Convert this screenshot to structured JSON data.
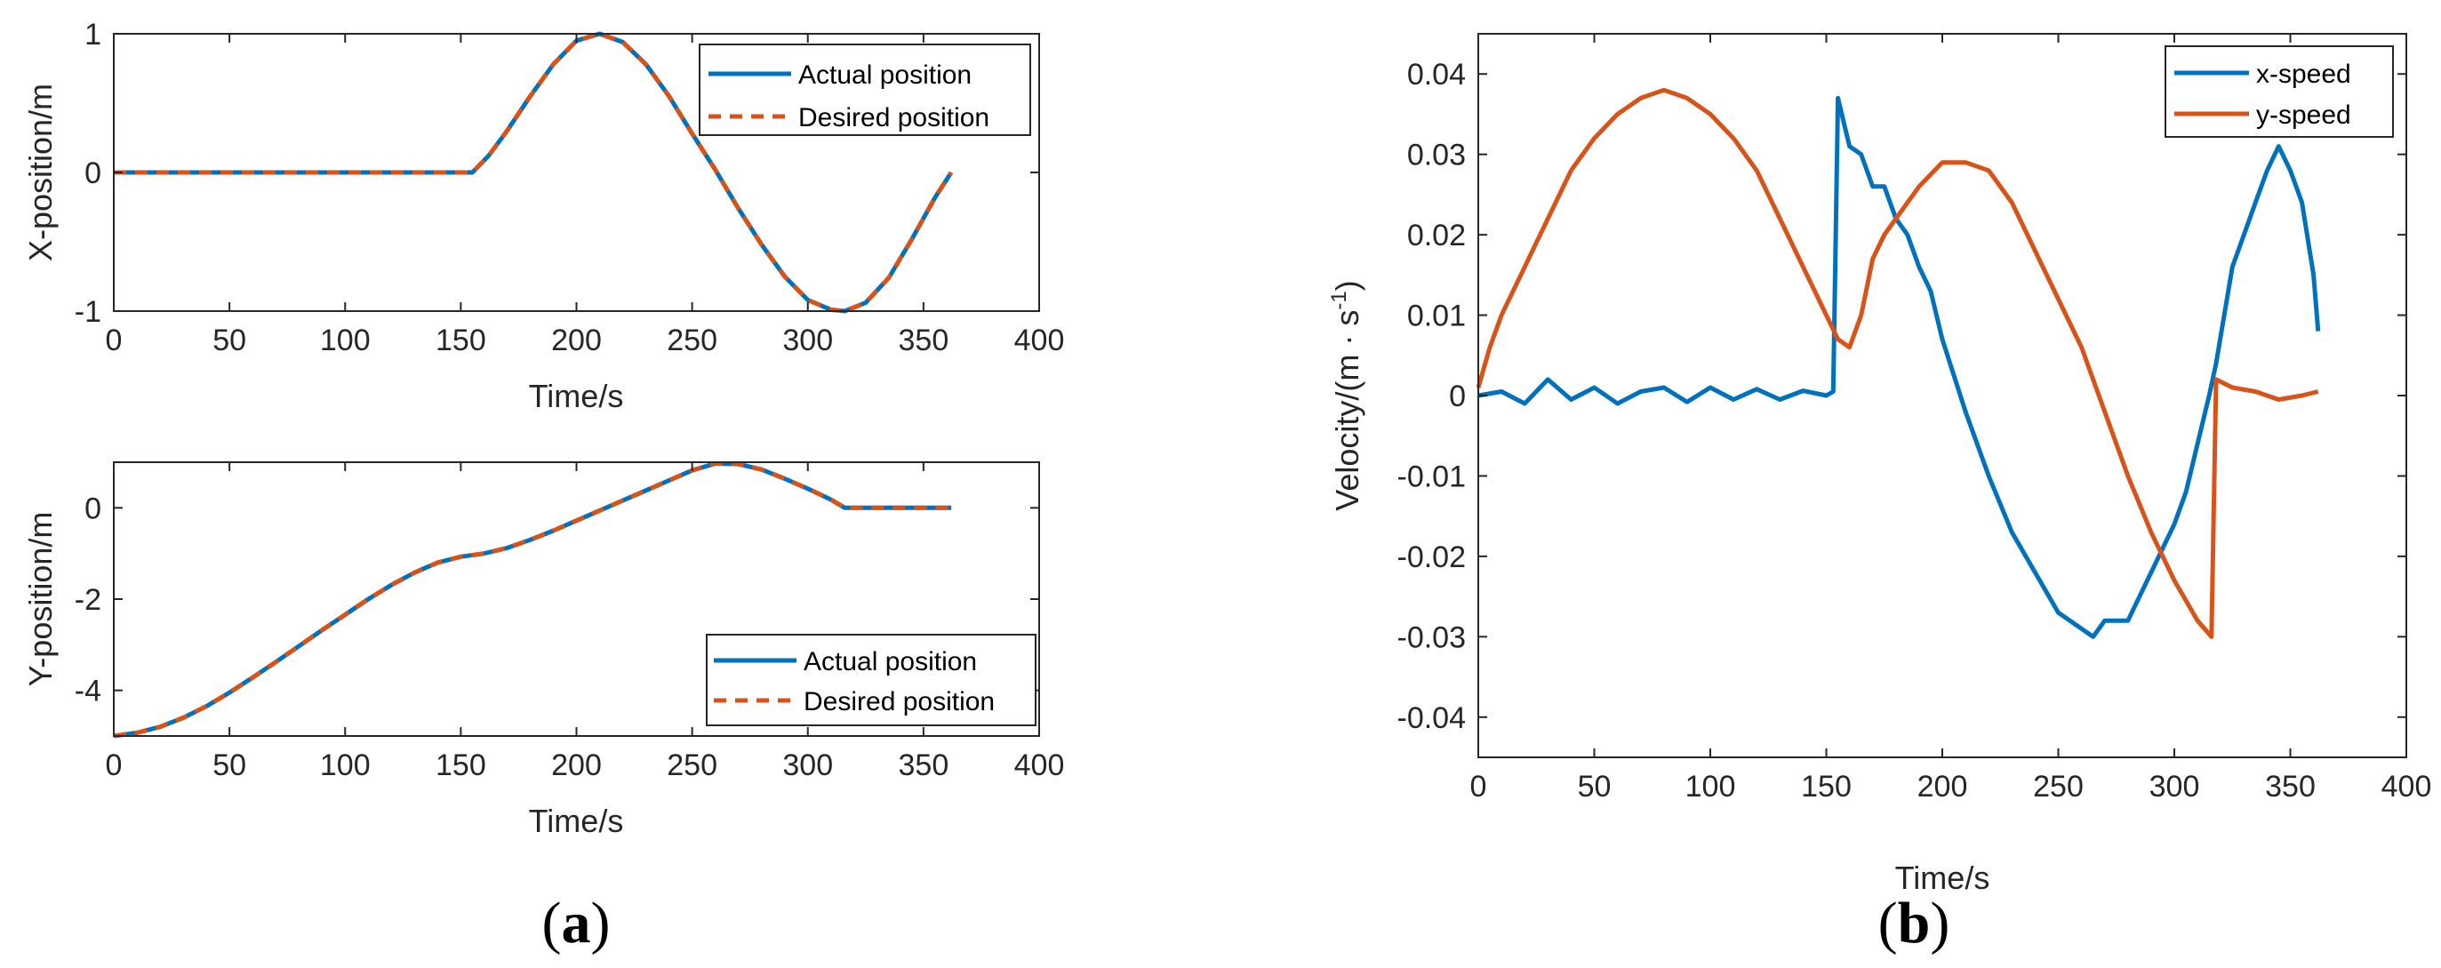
{
  "colors": {
    "actual": "#0072bd",
    "desired": "#d95319",
    "x_speed": "#0072bd",
    "y_speed": "#d95319",
    "axis": "#262626"
  },
  "panel_labels": {
    "a": {
      "open": "(",
      "letter": "a",
      "close": ")"
    },
    "b": {
      "open": "(",
      "letter": "b",
      "close": ")"
    }
  },
  "chart_data": [
    {
      "id": "x_position",
      "type": "line",
      "xlabel": "Time/s",
      "ylabel": "X-position/m",
      "xlim": [
        0,
        400
      ],
      "ylim": [
        -1,
        1
      ],
      "xticks": [
        0,
        50,
        100,
        150,
        200,
        250,
        300,
        350,
        400
      ],
      "xtick_labels": [
        "0",
        "50",
        "100",
        "150",
        "200",
        "250",
        "300",
        "350",
        "400"
      ],
      "yticks": [
        -1,
        0,
        1
      ],
      "ytick_labels": [
        "-1",
        "0",
        "1"
      ],
      "legend_position": "top-right",
      "series": [
        {
          "name": "Actual position",
          "style": "solid",
          "x": [
            0,
            155,
            162,
            170,
            180,
            190,
            200,
            210,
            220,
            230,
            240,
            250,
            260,
            270,
            280,
            290,
            300,
            310,
            316,
            325,
            335,
            345,
            355,
            362
          ],
          "y": [
            0,
            0,
            0.12,
            0.3,
            0.55,
            0.78,
            0.95,
            1.0,
            0.94,
            0.78,
            0.55,
            0.28,
            0.02,
            -0.26,
            -0.52,
            -0.75,
            -0.92,
            -0.99,
            -1.0,
            -0.94,
            -0.76,
            -0.48,
            -0.18,
            0
          ]
        },
        {
          "name": "Desired position",
          "style": "dashed",
          "x": [
            0,
            155,
            162,
            170,
            180,
            190,
            200,
            210,
            220,
            230,
            240,
            250,
            260,
            270,
            280,
            290,
            300,
            310,
            316,
            325,
            335,
            345,
            355,
            362
          ],
          "y": [
            0,
            0,
            0.12,
            0.3,
            0.55,
            0.78,
            0.95,
            1.0,
            0.94,
            0.78,
            0.55,
            0.28,
            0.02,
            -0.26,
            -0.52,
            -0.75,
            -0.92,
            -0.99,
            -1.0,
            -0.94,
            -0.76,
            -0.48,
            -0.18,
            0
          ]
        }
      ]
    },
    {
      "id": "y_position",
      "type": "line",
      "xlabel": "Time/s",
      "ylabel": "Y-position/m",
      "xlim": [
        0,
        400
      ],
      "ylim": [
        -5,
        1
      ],
      "xticks": [
        0,
        50,
        100,
        150,
        200,
        250,
        300,
        350,
        400
      ],
      "xtick_labels": [
        "0",
        "50",
        "100",
        "150",
        "200",
        "250",
        "300",
        "350",
        "400"
      ],
      "yticks": [
        -4,
        -2,
        0
      ],
      "ytick_labels": [
        "-4",
        "-2",
        "0"
      ],
      "legend_position": "bottom-right",
      "series": [
        {
          "name": "Actual position",
          "style": "solid",
          "x": [
            0,
            10,
            20,
            30,
            40,
            50,
            60,
            70,
            80,
            90,
            100,
            110,
            120,
            130,
            140,
            150,
            160,
            170,
            180,
            190,
            200,
            210,
            220,
            230,
            240,
            250,
            260,
            270,
            280,
            290,
            300,
            310,
            316,
            330,
            345,
            362
          ],
          "y": [
            -5,
            -4.93,
            -4.8,
            -4.6,
            -4.35,
            -4.05,
            -3.72,
            -3.38,
            -3.03,
            -2.68,
            -2.34,
            -2.0,
            -1.69,
            -1.42,
            -1.2,
            -1.07,
            -1.0,
            -0.88,
            -0.7,
            -0.5,
            -0.28,
            -0.06,
            0.16,
            0.38,
            0.6,
            0.82,
            0.97,
            0.96,
            0.84,
            0.64,
            0.42,
            0.18,
            0,
            0,
            0,
            0
          ]
        },
        {
          "name": "Desired position",
          "style": "dashed",
          "x": [
            0,
            10,
            20,
            30,
            40,
            50,
            60,
            70,
            80,
            90,
            100,
            110,
            120,
            130,
            140,
            150,
            160,
            170,
            180,
            190,
            200,
            210,
            220,
            230,
            240,
            250,
            260,
            270,
            280,
            290,
            300,
            310,
            316,
            330,
            345,
            362
          ],
          "y": [
            -5,
            -4.93,
            -4.8,
            -4.6,
            -4.35,
            -4.05,
            -3.72,
            -3.38,
            -3.03,
            -2.68,
            -2.34,
            -2.0,
            -1.69,
            -1.42,
            -1.2,
            -1.07,
            -1.0,
            -0.88,
            -0.7,
            -0.5,
            -0.28,
            -0.06,
            0.16,
            0.38,
            0.6,
            0.82,
            0.97,
            0.96,
            0.84,
            0.64,
            0.42,
            0.18,
            0,
            0,
            0,
            0
          ]
        }
      ]
    },
    {
      "id": "velocity",
      "type": "line",
      "xlabel": "Time/s",
      "ylabel": "Velocity/(m · s",
      "ylabel_superscript": "-1",
      "ylabel_suffix": ")",
      "xlim": [
        0,
        400
      ],
      "ylim": [
        -0.045,
        0.045
      ],
      "xticks": [
        0,
        50,
        100,
        150,
        200,
        250,
        300,
        350,
        400
      ],
      "xtick_labels": [
        "0",
        "50",
        "100",
        "150",
        "200",
        "250",
        "300",
        "350",
        "400"
      ],
      "yticks": [
        -0.04,
        -0.03,
        -0.02,
        -0.01,
        0,
        0.01,
        0.02,
        0.03,
        0.04
      ],
      "ytick_labels": [
        "-0.04",
        "-0.03",
        "-0.02",
        "-0.01",
        "0",
        "0.01",
        "0.02",
        "0.03",
        "0.04"
      ],
      "legend_position": "top-right",
      "series": [
        {
          "name": "x-speed",
          "style": "solid",
          "x": [
            0,
            10,
            20,
            30,
            40,
            50,
            60,
            70,
            80,
            90,
            100,
            110,
            120,
            130,
            140,
            150,
            153,
            155,
            160,
            165,
            170,
            175,
            180,
            185,
            190,
            195,
            200,
            210,
            220,
            230,
            240,
            250,
            260,
            265,
            270,
            280,
            290,
            300,
            305,
            310,
            315,
            318,
            325,
            330,
            335,
            340,
            345,
            350,
            355,
            360,
            362
          ],
          "y": [
            0,
            0.0005,
            -0.001,
            0.002,
            -0.0005,
            0.001,
            -0.001,
            0.0005,
            0.001,
            -0.0008,
            0.001,
            -0.0005,
            0.0008,
            -0.0005,
            0.0006,
            0,
            0.0005,
            0.037,
            0.031,
            0.03,
            0.026,
            0.026,
            0.022,
            0.02,
            0.016,
            0.013,
            0.007,
            -0.002,
            -0.01,
            -0.017,
            -0.022,
            -0.027,
            -0.029,
            -0.03,
            -0.028,
            -0.028,
            -0.022,
            -0.016,
            -0.012,
            -0.006,
            0,
            0.004,
            0.016,
            0.02,
            0.024,
            0.028,
            0.031,
            0.028,
            0.024,
            0.015,
            0.008
          ]
        },
        {
          "name": "y-speed",
          "style": "solid",
          "x": [
            0,
            5,
            10,
            20,
            30,
            40,
            50,
            60,
            70,
            80,
            90,
            100,
            110,
            120,
            130,
            140,
            150,
            155,
            160,
            165,
            170,
            175,
            180,
            190,
            200,
            210,
            220,
            230,
            240,
            250,
            260,
            270,
            280,
            290,
            300,
            310,
            316,
            318,
            325,
            335,
            345,
            355,
            362
          ],
          "y": [
            0.001,
            0.006,
            0.01,
            0.016,
            0.022,
            0.028,
            0.032,
            0.035,
            0.037,
            0.038,
            0.037,
            0.035,
            0.032,
            0.028,
            0.022,
            0.016,
            0.01,
            0.007,
            0.006,
            0.01,
            0.017,
            0.02,
            0.022,
            0.026,
            0.029,
            0.029,
            0.028,
            0.024,
            0.018,
            0.012,
            0.006,
            -0.002,
            -0.01,
            -0.017,
            -0.023,
            -0.028,
            -0.03,
            0.002,
            0.001,
            0.0005,
            -0.0005,
            0,
            0.0005
          ]
        }
      ]
    }
  ]
}
